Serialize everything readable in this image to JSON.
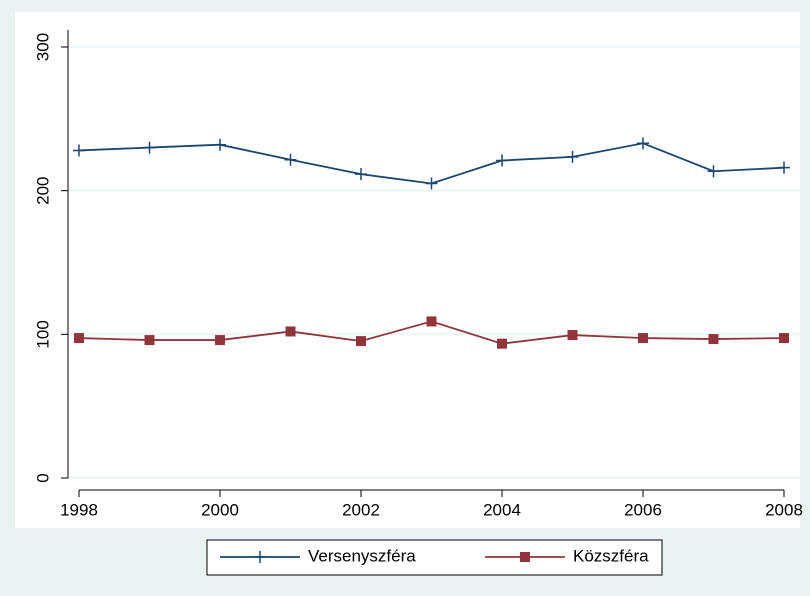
{
  "chart_data": {
    "type": "line",
    "x": [
      1998,
      1999,
      2000,
      2001,
      2002,
      2003,
      2004,
      2005,
      2006,
      2007,
      2008
    ],
    "series": [
      {
        "name": "Versenyszféra",
        "color": "#1a476f",
        "marker": "plus",
        "values": [
          228,
          230,
          232,
          221.5,
          211.5,
          205,
          221,
          223.5,
          233,
          213.5,
          216
        ]
      },
      {
        "name": "Közszféra",
        "color": "#90353b",
        "marker": "square",
        "values": [
          97.4,
          96,
          96,
          102,
          95.3,
          109,
          93.5,
          99.5,
          97.4,
          96.7,
          97.4
        ]
      }
    ],
    "xlim": [
      1998,
      2008
    ],
    "xticks": [
      1998,
      2000,
      2002,
      2004,
      2006,
      2008
    ],
    "ylim": [
      0,
      300
    ],
    "yticks": [
      0,
      100,
      200,
      300
    ],
    "grid": true,
    "legend": "bottom"
  }
}
